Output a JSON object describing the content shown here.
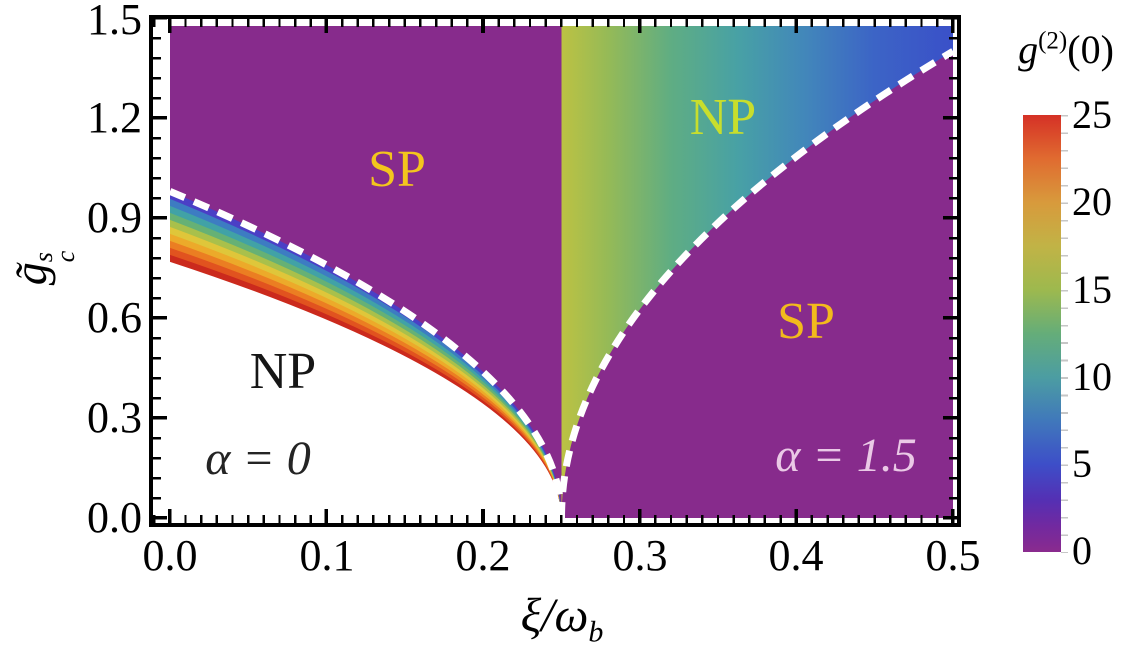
{
  "figure": {
    "y_axis": {
      "label_base": "g̃",
      "label_sup": "s",
      "label_sub": "c",
      "tick_labels": [
        "1.5",
        "1.2",
        "0.9",
        "0.6",
        "0.3",
        "0.0"
      ]
    },
    "x_axis": {
      "label_main": "ξ/ω",
      "label_sub": "b",
      "tick_labels": [
        "0.0",
        "0.1",
        "0.2",
        "0.3",
        "0.4",
        "0.5"
      ]
    },
    "regions": {
      "sp_left": "SP",
      "np_top_right": "NP",
      "np_bottom_left": "NP",
      "sp_right": "SP"
    },
    "annotations": {
      "alpha_left": "α = 0",
      "alpha_right": "α = 1.5"
    },
    "colorbar": {
      "title_base": "g",
      "title_sup": "(2)",
      "title_arg": "(0)",
      "tick_labels": [
        "25",
        "20",
        "15",
        "10",
        "5",
        "0"
      ]
    },
    "colors": {
      "sp_purple": "#872b8c",
      "boundary_dash": "#ffffff",
      "label_sp": "#f3c51d",
      "label_np_right": "#c8de2d",
      "label_dark": "#161616",
      "label_alpha15": "#eac9e6",
      "band_low_to_high": [
        "#cb2a1d",
        "#e1531f",
        "#eb7e22",
        "#ecaa2a",
        "#dfc63a",
        "#a9c04b",
        "#66b175",
        "#41a2a6",
        "#3d7cc2",
        "#4b3fc6"
      ],
      "np_alpha15_gradient": [
        [
          0,
          "#bcc243"
        ],
        [
          12,
          "#95ba57"
        ],
        [
          28,
          "#5fad83"
        ],
        [
          45,
          "#48a1a5"
        ],
        [
          62,
          "#4287ba"
        ],
        [
          80,
          "#3c64c6"
        ],
        [
          100,
          "#3a50c8"
        ]
      ],
      "colorbar_stops_bottom_to_top": [
        [
          0,
          "#8a2b8e"
        ],
        [
          6,
          "#7129a0"
        ],
        [
          12,
          "#5430b4"
        ],
        [
          20,
          "#3d4ec8"
        ],
        [
          30,
          "#4078bb"
        ],
        [
          40,
          "#4c9da2"
        ],
        [
          50,
          "#65ad79"
        ],
        [
          60,
          "#9db94e"
        ],
        [
          70,
          "#c1b346"
        ],
        [
          80,
          "#d89a3c"
        ],
        [
          90,
          "#e06b30"
        ],
        [
          100,
          "#d53126"
        ]
      ]
    }
  },
  "chart_data": {
    "type": "heatmap",
    "title": "",
    "xlabel": "ξ/ω_b",
    "ylabel": "g̃_c^s",
    "xlim": [
      0.0,
      0.5
    ],
    "ylim": [
      0.0,
      1.5
    ],
    "x_ticks": [
      0.0,
      0.1,
      0.2,
      0.3,
      0.4,
      0.5
    ],
    "y_ticks": [
      0.0,
      0.3,
      0.6,
      0.9,
      1.2,
      1.5
    ],
    "grid": false,
    "colorbar": {
      "label": "g^(2)(0)",
      "min": 0,
      "max": 25,
      "ticks": [
        0,
        5,
        10,
        15,
        20,
        25
      ],
      "position": "right"
    },
    "critical_xi": 0.25,
    "panels": [
      {
        "alpha": 0,
        "xi_range": [
          0.0,
          0.25
        ],
        "phase_below_boundary": "NP (white)",
        "phase_above_boundary": "SP (purple, g2=0)",
        "dashed_boundary_points": [
          [
            0.0,
            0.98
          ],
          [
            0.05,
            0.88
          ],
          [
            0.1,
            0.76
          ],
          [
            0.15,
            0.62
          ],
          [
            0.2,
            0.44
          ],
          [
            0.25,
            0.0
          ]
        ],
        "colored_band_inner_edge_points": [
          [
            0.0,
            0.77
          ],
          [
            0.05,
            0.69
          ],
          [
            0.1,
            0.6
          ],
          [
            0.15,
            0.49
          ],
          [
            0.2,
            0.34
          ],
          [
            0.25,
            0.0
          ]
        ],
        "band_g2_values": "g2(0) ≈ 25 (red) at inner edge rising to 0 (purple) at dashed boundary"
      },
      {
        "alpha": 1.5,
        "xi_range": [
          0.25,
          0.5
        ],
        "phase_left_of_boundary": "NP (colored by g2)",
        "phase_right_of_boundary": "SP (purple, g2=0)",
        "dashed_boundary_points": [
          [
            0.25,
            0.0
          ],
          [
            0.3,
            0.63
          ],
          [
            0.35,
            0.89
          ],
          [
            0.4,
            1.09
          ],
          [
            0.45,
            1.25
          ],
          [
            0.5,
            1.4
          ]
        ],
        "np_g2_values": "g2(0) ≈ 15 (yellow-green) at ξ=0.25 decreasing to ≈ 5 (blue) approaching the dashed boundary"
      }
    ]
  }
}
